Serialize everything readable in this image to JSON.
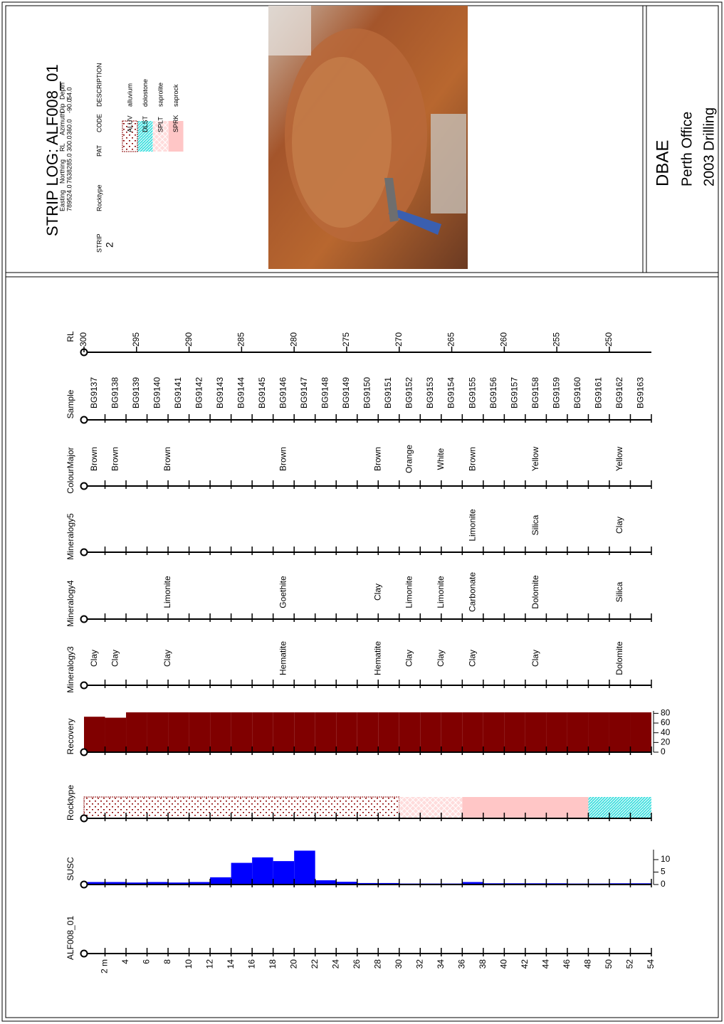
{
  "header": {
    "title": "STRIP LOG: ALF008_01",
    "collar": {
      "labels": [
        "Easting",
        "Northing",
        "RL",
        "Azimuth",
        "Dip",
        "Depth"
      ],
      "values": [
        "789524.0",
        "7638285.0",
        "300.0",
        "360.0",
        "-90.0",
        "54.0"
      ]
    },
    "strip_label": "STRIP",
    "strip": "2",
    "legend_title": "Rocktype",
    "legend_headers": [
      "PAT",
      "CODE",
      "DESCRIPTION"
    ],
    "legend": [
      {
        "code": "ALUV",
        "description": "alluvium",
        "color": "#8b0000"
      },
      {
        "code": "DLST",
        "description": "dolostone",
        "color": "#3fdfdf"
      },
      {
        "code": "SPLT",
        "description": "saprolite",
        "color": "#ffdcdc"
      },
      {
        "code": "SPRK",
        "description": "saprock",
        "color": "#ffc6c6"
      }
    ]
  },
  "title_block": {
    "company": "DBAE",
    "office": "Perth Office",
    "project": "2003 Drilling"
  },
  "chart_data": {
    "type": "strip_log",
    "depth_lim": [
      0,
      54
    ],
    "depth_ticks": [
      {
        "value": 2,
        "label": "2 m"
      },
      4,
      6,
      8,
      10,
      12,
      14,
      16,
      18,
      20,
      22,
      24,
      26,
      28,
      30,
      32,
      34,
      36,
      38,
      40,
      42,
      44,
      46,
      48,
      50,
      52,
      54
    ],
    "tracks": [
      {
        "name": "ALF008_01",
        "type": "depth"
      },
      {
        "name": "SUSC",
        "type": "histogram",
        "color": "#0000ff",
        "bins": [
          0,
          2,
          4,
          6,
          8,
          10,
          12,
          14,
          16,
          18,
          20,
          22,
          24,
          26,
          28,
          30,
          32,
          34,
          36,
          38,
          40,
          42,
          44,
          46,
          48,
          50,
          52,
          54
        ],
        "values": [
          1.0,
          1.0,
          0.8,
          1.0,
          0.8,
          1.0,
          2.9,
          8.7,
          10.9,
          9.4,
          13.6,
          1.7,
          1.1,
          0.6,
          0.6,
          0.4,
          0.4,
          0.4,
          1.0,
          0.5,
          0.5,
          0.5,
          0.5,
          0.4,
          0.4,
          0.5,
          0.5
        ],
        "lim": [
          0,
          14
        ],
        "ticks": [
          0,
          5,
          10
        ]
      },
      {
        "name": "Rocktype",
        "type": "intervals",
        "from": [
          0,
          30,
          36,
          48
        ],
        "to": [
          30,
          36,
          48,
          54
        ],
        "codes": [
          "ALUV",
          "SPLT",
          "SPRK",
          "DLST"
        ]
      },
      {
        "name": "Recovery",
        "type": "histogram",
        "color": "#800000",
        "bins": [
          0,
          2,
          4,
          6,
          8,
          10,
          12,
          14,
          16,
          18,
          20,
          22,
          24,
          26,
          28,
          30,
          32,
          34,
          36,
          38,
          40,
          42,
          44,
          46,
          48,
          50,
          52,
          54
        ],
        "values": [
          73,
          71,
          82,
          82,
          82,
          82,
          82,
          82,
          82,
          82,
          82,
          82,
          82,
          82,
          82,
          82,
          82,
          82,
          82,
          82,
          82,
          82,
          82,
          82,
          82,
          82,
          82
        ],
        "lim": [
          0,
          85
        ],
        "ticks": [
          0,
          20,
          40,
          60,
          80
        ]
      },
      {
        "name": "Mineralogy3",
        "type": "text",
        "bins": [
          0,
          2,
          4,
          12,
          26,
          30,
          32,
          36,
          38,
          48,
          54
        ],
        "labels": [
          "Clay",
          "Clay",
          "Clay",
          "Hematite",
          "Hematite",
          "Clay",
          "Clay",
          "Clay",
          "Clay",
          "Dolomite"
        ]
      },
      {
        "name": "Mineralogy4",
        "type": "text",
        "bins": [
          0,
          2,
          4,
          12,
          26,
          30,
          32,
          36,
          38,
          48,
          54
        ],
        "labels": [
          null,
          null,
          "Limonite",
          "Goethite",
          "Clay",
          "Limonite",
          "Limonite",
          "Carbonate",
          "Dolomite",
          "Silica"
        ]
      },
      {
        "name": "Mineralogy5",
        "type": "text",
        "bins": [
          0,
          2,
          4,
          12,
          26,
          30,
          32,
          36,
          38,
          48,
          54
        ],
        "labels": [
          null,
          null,
          null,
          null,
          null,
          null,
          null,
          "Limonite",
          "Silica",
          "Clay"
        ]
      },
      {
        "name": "ColourMajor",
        "type": "text",
        "bins": [
          0,
          2,
          4,
          12,
          26,
          30,
          32,
          36,
          38,
          48,
          54
        ],
        "labels": [
          "Brown",
          "Brown",
          "Brown",
          "Brown",
          "Brown",
          "Orange",
          "White",
          "Brown",
          "Yellow",
          "Yellow"
        ]
      },
      {
        "name": "Sample",
        "type": "text",
        "bins": [
          0,
          2,
          4,
          6,
          8,
          10,
          12,
          14,
          16,
          18,
          20,
          22,
          24,
          26,
          28,
          30,
          32,
          34,
          36,
          38,
          40,
          42,
          44,
          46,
          48,
          50,
          52,
          54
        ],
        "labels": [
          "BG9137",
          "BG9138",
          "BG9139",
          "BG9140",
          "BG9141",
          "BG9142",
          "BG9143",
          "BG9144",
          "BG9145",
          "BG9146",
          "BG9147",
          "BG9148",
          "BG9149",
          "BG9150",
          "BG9151",
          "BG9152",
          "BG9153",
          "BG9154",
          "BG9155",
          "BG9156",
          "BG9157",
          "BG9158",
          "BG9159",
          "BG9160",
          "BG9161",
          "BG9162",
          "BG9163"
        ]
      },
      {
        "name": "RL",
        "type": "scale",
        "lim": [
          300,
          246
        ],
        "ticks": [
          300,
          295,
          290,
          285,
          280,
          275,
          270,
          265,
          260,
          255,
          250
        ]
      }
    ]
  }
}
